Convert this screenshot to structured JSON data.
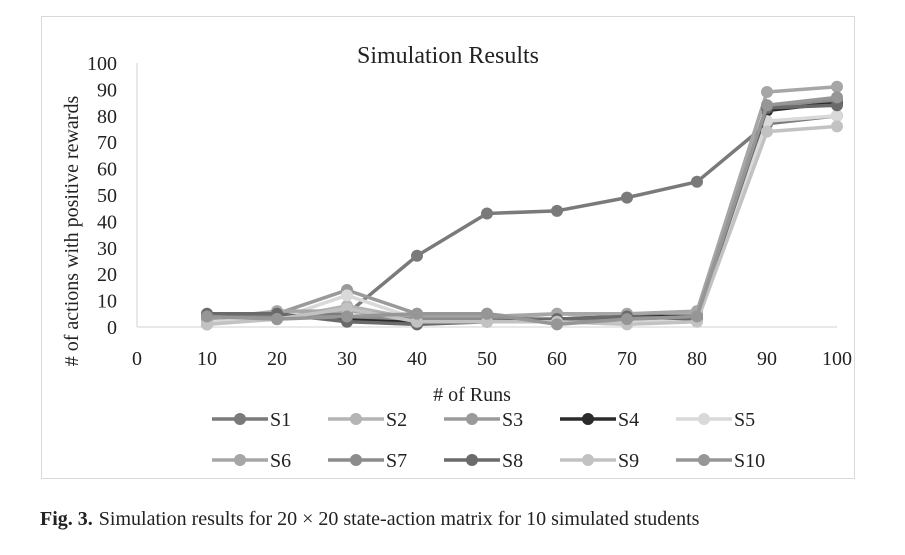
{
  "figure_caption": {
    "label": "Fig. 3.",
    "text": "Simulation results for 20 × 20 state-action matrix for 10 simulated students"
  },
  "chart_data": {
    "type": "line",
    "title": "Simulation Results",
    "xlabel": "# of Runs",
    "ylabel": "# of actions with positive rewards",
    "x_ticks": [
      "0",
      "10",
      "20",
      "30",
      "40",
      "50",
      "60",
      "70",
      "80",
      "90",
      "100"
    ],
    "y_ticks": [
      "0",
      "10",
      "20",
      "30",
      "40",
      "50",
      "60",
      "70",
      "80",
      "90",
      "100"
    ],
    "ylim": [
      0,
      100
    ],
    "grid": false,
    "legend_position": "bottom",
    "x": [
      10,
      20,
      30,
      40,
      50,
      60,
      70,
      80,
      90,
      100
    ],
    "series": [
      {
        "name": "S1",
        "color": "#7a7a7a",
        "values": [
          1,
          5,
          5,
          27,
          43,
          44,
          49,
          55,
          77,
          80
        ]
      },
      {
        "name": "S2",
        "color": "#b4b4b4",
        "values": [
          2,
          3,
          8,
          3,
          3,
          5,
          4,
          5,
          82,
          86
        ]
      },
      {
        "name": "S3",
        "color": "#9a9a9a",
        "values": [
          3,
          5,
          14,
          5,
          5,
          2,
          3,
          4,
          83,
          85
        ]
      },
      {
        "name": "S4",
        "color": "#2b2b2b",
        "values": [
          4,
          4,
          3,
          2,
          3,
          3,
          4,
          4,
          82,
          85
        ]
      },
      {
        "name": "S5",
        "color": "#d9d9d9",
        "values": [
          2,
          3,
          12,
          3,
          2,
          2,
          2,
          3,
          78,
          80
        ]
      },
      {
        "name": "S6",
        "color": "#a6a6a6",
        "values": [
          3,
          6,
          6,
          4,
          4,
          5,
          5,
          6,
          89,
          91
        ]
      },
      {
        "name": "S7",
        "color": "#8c8c8c",
        "values": [
          4,
          4,
          4,
          3,
          3,
          3,
          3,
          4,
          84,
          86
        ]
      },
      {
        "name": "S8",
        "color": "#6a6a6a",
        "values": [
          5,
          5,
          2,
          1,
          2,
          3,
          4,
          3,
          83,
          84
        ]
      },
      {
        "name": "S9",
        "color": "#c2c2c2",
        "values": [
          1,
          3,
          7,
          2,
          2,
          2,
          1,
          2,
          74,
          76
        ]
      },
      {
        "name": "S10",
        "color": "#969696",
        "values": [
          4,
          3,
          4,
          5,
          5,
          1,
          3,
          4,
          84,
          87
        ]
      }
    ]
  }
}
